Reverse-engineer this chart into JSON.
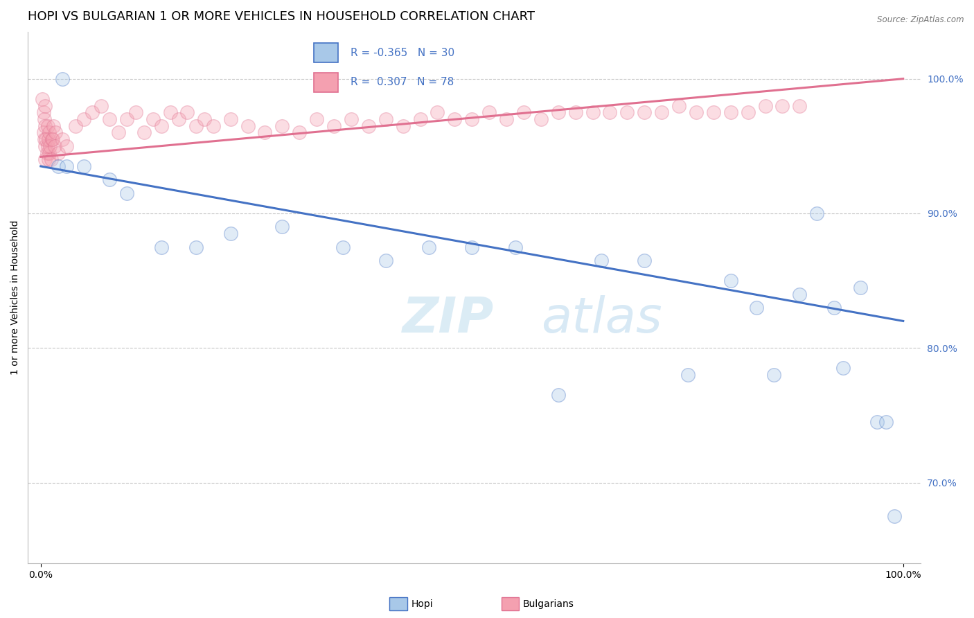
{
  "title": "HOPI VS BULGARIAN 1 OR MORE VEHICLES IN HOUSEHOLD CORRELATION CHART",
  "source_text": "Source: ZipAtlas.com",
  "ylabel": "1 or more Vehicles in Household",
  "hopi_R": -0.365,
  "hopi_N": 30,
  "bulg_R": 0.307,
  "bulg_N": 78,
  "hopi_color": "#a8c8e8",
  "bulg_color": "#f4a0b0",
  "hopi_line_color": "#4472c4",
  "bulg_line_color": "#e07090",
  "watermark_ZIP": "ZIP",
  "watermark_atlas": "atlas",
  "background_color": "#ffffff",
  "legend_label_hopi": "Hopi",
  "legend_label_bulg": "Bulgarians",
  "hopi_points_x": [
    2.0,
    2.5,
    3.0,
    5.0,
    8.0,
    10.0,
    14.0,
    18.0,
    22.0,
    28.0,
    35.0,
    40.0,
    45.0,
    50.0,
    55.0,
    60.0,
    65.0,
    70.0,
    75.0,
    80.0,
    83.0,
    85.0,
    88.0,
    90.0,
    92.0,
    93.0,
    95.0,
    97.0,
    98.0,
    99.0
  ],
  "hopi_points_y": [
    93.5,
    100.0,
    93.5,
    93.5,
    92.5,
    91.5,
    87.5,
    87.5,
    88.5,
    89.0,
    87.5,
    86.5,
    87.5,
    87.5,
    87.5,
    76.5,
    86.5,
    86.5,
    78.0,
    85.0,
    83.0,
    78.0,
    84.0,
    90.0,
    83.0,
    78.5,
    84.5,
    74.5,
    74.5,
    67.5
  ],
  "bulg_points_x": [
    0.2,
    0.3,
    0.3,
    0.4,
    0.4,
    0.5,
    0.5,
    0.5,
    0.5,
    0.6,
    0.7,
    0.8,
    0.8,
    0.9,
    0.9,
    1.0,
    1.0,
    1.1,
    1.2,
    1.3,
    1.4,
    1.5,
    1.6,
    1.7,
    2.0,
    2.5,
    3.0,
    4.0,
    5.0,
    6.0,
    7.0,
    8.0,
    9.0,
    10.0,
    11.0,
    12.0,
    13.0,
    14.0,
    15.0,
    16.0,
    17.0,
    18.0,
    19.0,
    20.0,
    22.0,
    24.0,
    26.0,
    28.0,
    30.0,
    32.0,
    34.0,
    36.0,
    38.0,
    40.0,
    42.0,
    44.0,
    46.0,
    48.0,
    50.0,
    52.0,
    54.0,
    56.0,
    58.0,
    60.0,
    62.0,
    64.0,
    66.0,
    68.0,
    70.0,
    72.0,
    74.0,
    76.0,
    78.0,
    80.0,
    82.0,
    84.0,
    86.0,
    88.0
  ],
  "bulg_points_y": [
    98.5,
    96.0,
    97.5,
    95.5,
    97.0,
    94.0,
    95.0,
    96.5,
    98.0,
    95.5,
    94.5,
    95.0,
    96.5,
    94.0,
    95.5,
    94.5,
    96.0,
    95.0,
    94.0,
    95.5,
    95.5,
    96.5,
    95.0,
    96.0,
    94.5,
    95.5,
    95.0,
    96.5,
    97.0,
    97.5,
    98.0,
    97.0,
    96.0,
    97.0,
    97.5,
    96.0,
    97.0,
    96.5,
    97.5,
    97.0,
    97.5,
    96.5,
    97.0,
    96.5,
    97.0,
    96.5,
    96.0,
    96.5,
    96.0,
    97.0,
    96.5,
    97.0,
    96.5,
    97.0,
    96.5,
    97.0,
    97.5,
    97.0,
    97.0,
    97.5,
    97.0,
    97.5,
    97.0,
    97.5,
    97.5,
    97.5,
    97.5,
    97.5,
    97.5,
    97.5,
    98.0,
    97.5,
    97.5,
    97.5,
    97.5,
    98.0,
    98.0,
    98.0
  ],
  "ylim": [
    64.0,
    103.5
  ],
  "xlim": [
    -1.5,
    102.0
  ],
  "yticks": [
    70.0,
    80.0,
    90.0,
    100.0
  ],
  "yticklabels": [
    "70.0%",
    "80.0%",
    "90.0%",
    "100.0%"
  ],
  "grid_color": "#c8c8c8",
  "title_fontsize": 13,
  "axis_fontsize": 10,
  "tick_fontsize": 10,
  "marker_size": 200,
  "marker_alpha": 0.35,
  "line_width": 2.2,
  "hopi_trend_x0": 0,
  "hopi_trend_y0": 93.5,
  "hopi_trend_x1": 100,
  "hopi_trend_y1": 82.0,
  "bulg_trend_x0": 0,
  "bulg_trend_y0": 94.2,
  "bulg_trend_x1": 100,
  "bulg_trend_y1": 100.0
}
